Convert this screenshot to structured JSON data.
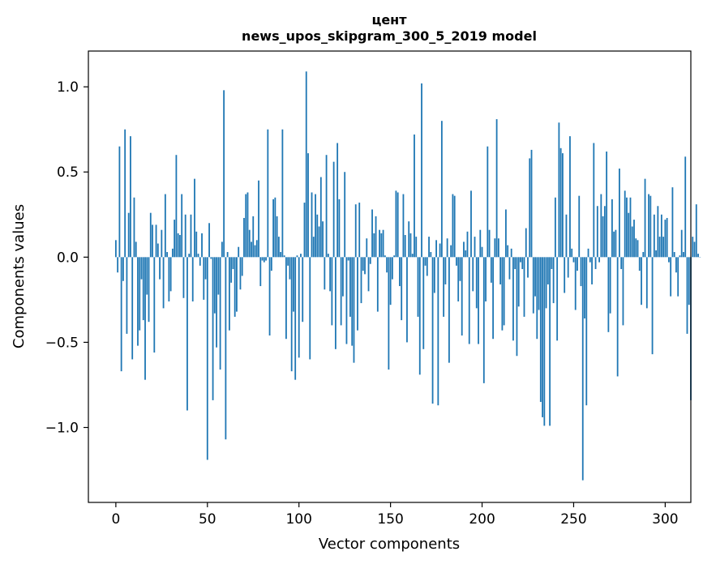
{
  "chart_data": {
    "type": "bar",
    "title_line1": "цент",
    "title_line2": "news_upos_skipgram_300_5_2019 model",
    "xlabel": "Vector components",
    "ylabel": "Components values",
    "xlim": [
      -15,
      314
    ],
    "ylim": [
      -1.44,
      1.21
    ],
    "xticks": [
      0,
      50,
      100,
      150,
      200,
      250,
      300
    ],
    "yticks": [
      -1.0,
      -0.5,
      0.0,
      0.5,
      1.0
    ],
    "ytick_labels": [
      "−1.0",
      "−0.5",
      "0.0",
      "0.5",
      "1.0"
    ],
    "bar_color": "#1f77b4",
    "values": [
      0.1,
      -0.09,
      0.65,
      -0.67,
      -0.14,
      0.75,
      -0.45,
      0.26,
      0.71,
      -0.6,
      0.35,
      0.09,
      -0.52,
      -0.43,
      -0.13,
      -0.37,
      -0.72,
      -0.22,
      -0.38,
      0.26,
      0.19,
      -0.56,
      0.19,
      0.08,
      -0.13,
      0.16,
      -0.3,
      0.37,
      0.03,
      -0.26,
      -0.2,
      0.05,
      0.22,
      0.6,
      0.14,
      0.13,
      0.37,
      -0.24,
      0.25,
      -0.9,
      0.02,
      0.25,
      -0.26,
      0.46,
      0.15,
      0.02,
      -0.05,
      0.14,
      -0.25,
      -0.13,
      -1.19,
      0.2,
      -0.01,
      -0.84,
      -0.33,
      -0.53,
      -0.22,
      -0.66,
      0.09,
      0.98,
      -1.07,
      0.03,
      -0.43,
      -0.15,
      -0.07,
      -0.35,
      -0.32,
      0.06,
      -0.19,
      -0.11,
      0.23,
      0.37,
      0.38,
      0.16,
      0.09,
      0.24,
      0.07,
      0.1,
      0.45,
      -0.17,
      -0.02,
      -0.03,
      -0.02,
      0.75,
      -0.46,
      -0.08,
      0.34,
      0.35,
      0.24,
      0.12,
      0.03,
      0.75,
      0.01,
      -0.48,
      -0.05,
      -0.13,
      -0.67,
      -0.32,
      -0.72,
      0.01,
      -0.59,
      0.02,
      -0.38,
      0.32,
      1.09,
      0.61,
      -0.6,
      0.38,
      0.12,
      0.37,
      0.25,
      0.18,
      0.47,
      0.21,
      -0.19,
      0.6,
      0.02,
      -0.2,
      -0.4,
      0.56,
      -0.54,
      0.67,
      0.34,
      -0.4,
      -0.23,
      0.5,
      -0.51,
      -0.02,
      -0.35,
      -0.52,
      -0.62,
      0.31,
      -0.43,
      0.32,
      -0.27,
      -0.08,
      -0.1,
      0.11,
      -0.2,
      -0.04,
      0.28,
      0.14,
      0.24,
      -0.32,
      0.16,
      0.14,
      0.16,
      0.01,
      -0.09,
      -0.66,
      -0.28,
      -0.13,
      0.01,
      0.39,
      0.38,
      -0.17,
      -0.37,
      0.37,
      0.13,
      -0.5,
      0.21,
      0.14,
      0.02,
      0.72,
      0.12,
      -0.35,
      -0.69,
      1.02,
      -0.54,
      -0.05,
      -0.11,
      0.12,
      0.03,
      -0.86,
      -0.21,
      0.1,
      -0.87,
      0.08,
      0.8,
      -0.35,
      -0.16,
      0.11,
      -0.62,
      0.07,
      0.37,
      0.36,
      -0.05,
      -0.26,
      -0.14,
      -0.46,
      0.09,
      0.04,
      0.15,
      -0.51,
      0.39,
      -0.2,
      0.12,
      -0.3,
      -0.51,
      0.16,
      0.06,
      -0.74,
      -0.26,
      0.65,
      0.16,
      -0.15,
      -0.48,
      0.11,
      0.81,
      0.11,
      -0.16,
      -0.43,
      -0.4,
      0.28,
      0.07,
      -0.13,
      0.05,
      -0.49,
      -0.07,
      -0.58,
      -0.29,
      -0.03,
      -0.07,
      -0.35,
      0.17,
      -0.12,
      0.58,
      0.63,
      -0.33,
      -0.23,
      -0.48,
      -0.31,
      -0.85,
      -0.94,
      -0.99,
      -0.3,
      -0.16,
      -0.99,
      -0.07,
      -0.27,
      0.35,
      -0.49,
      0.79,
      0.64,
      0.61,
      -0.21,
      0.25,
      -0.12,
      0.71,
      0.05,
      -0.03,
      -0.31,
      -0.08,
      0.36,
      -0.17,
      -1.31,
      -0.36,
      -0.87,
      0.05,
      -0.03,
      -0.16,
      0.67,
      -0.07,
      0.3,
      -0.03,
      0.37,
      0.24,
      0.3,
      0.62,
      -0.44,
      -0.33,
      0.34,
      0.15,
      0.16,
      -0.7,
      0.52,
      -0.07,
      -0.4,
      0.39,
      0.35,
      0.26,
      0.35,
      0.18,
      0.22,
      0.11,
      0.1,
      -0.08,
      -0.28,
      0.03,
      0.46,
      -0.3,
      0.37,
      0.36,
      -0.57,
      0.25,
      0.04,
      0.3,
      0.12,
      0.25,
      0.12,
      0.22,
      0.23,
      -0.03,
      -0.23,
      0.41,
      0.03,
      -0.09,
      -0.23,
      0.01,
      0.16,
      0.03,
      0.59,
      -0.45,
      -0.28,
      -0.84,
      0.12,
      0.09,
      0.31,
      0.02,
      0.0
    ]
  }
}
